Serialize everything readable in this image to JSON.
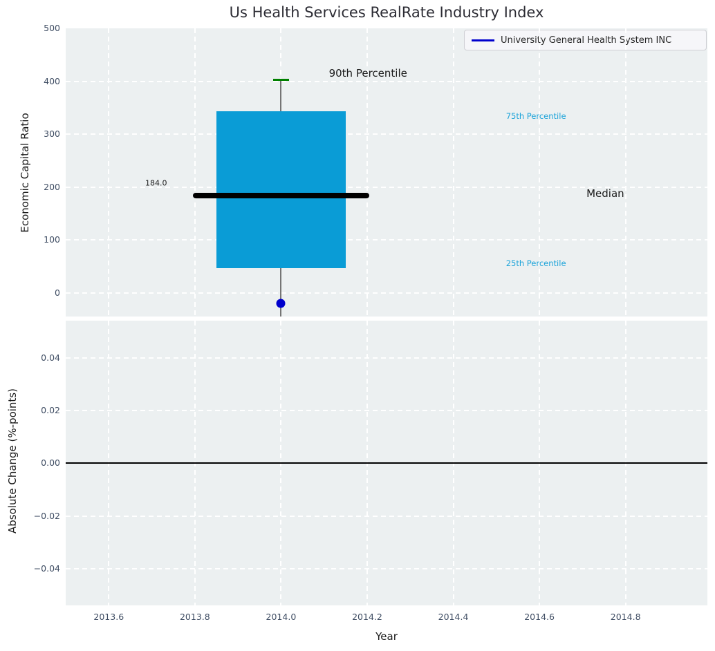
{
  "title": "Us Health Services RealRate Industry Index",
  "legend": {
    "label": "University General Health System INC",
    "line_color": "#0000cd",
    "position": "upper right"
  },
  "colors": {
    "figure_bg": "#ffffff",
    "axes_bg": "#ecf0f1",
    "grid": "#ffffff",
    "box_fill": "#0a9cd6",
    "whisker": "#757575",
    "p90_cap": "#008000",
    "median_line": "#000000",
    "company_dot": "#0000cd",
    "tick_label": "#3f4d63",
    "percentile_label": "#1ca3d9",
    "annotation_text": "#1a1a1a",
    "zero_line": "#000000"
  },
  "chart_data": [
    {
      "type": "boxplot",
      "ylabel": "Economic Capital Ratio",
      "ylim": [
        -45,
        500
      ],
      "xlim": [
        2013.5,
        2014.99
      ],
      "grid": "white dashed, on",
      "legend_position": "upper right",
      "yticks": [
        {
          "v": 500,
          "label": "500"
        },
        {
          "v": 400,
          "label": "400"
        },
        {
          "v": 300,
          "label": "300"
        },
        {
          "v": 200,
          "label": "200"
        },
        {
          "v": 100,
          "label": "100"
        },
        {
          "v": 0,
          "label": "0"
        }
      ],
      "box": {
        "x": 2014.0,
        "box_left": 2013.85,
        "box_right": 2014.15,
        "p25": 46,
        "median": 184,
        "p75": 343,
        "p90": 402,
        "whisker_bottom": -45,
        "median_line_left": 2013.795,
        "median_line_right": 2014.205,
        "cap_halfwidth": 0.018,
        "median_label": "184.0"
      },
      "company_point": {
        "name": "University General Health System INC",
        "x": 2014.0,
        "y": -20
      },
      "annotations": [
        {
          "text": "90th Percentile",
          "x": 2014.202,
          "y": 415,
          "color": "#1a1a1a",
          "size": 15
        },
        {
          "text": "75th Percentile",
          "x": 2014.592,
          "y": 334,
          "color": "#1ca3d9",
          "size": 11.5
        },
        {
          "text": "Median",
          "x": 2014.753,
          "y": 187,
          "color": "#1a1a1a",
          "size": 15
        },
        {
          "text": "25th Percentile",
          "x": 2014.592,
          "y": 56,
          "color": "#1ca3d9",
          "size": 11.5
        },
        {
          "text": "184.0",
          "x": 2013.71,
          "y": 207,
          "color": "#1a1a1a",
          "size": 11
        }
      ]
    },
    {
      "type": "line",
      "ylabel": "Absolute Change (%-points)",
      "xlabel": "Year",
      "ylim": [
        -0.054,
        0.0542
      ],
      "xlim": [
        2013.5,
        2014.99
      ],
      "grid": "white dashed, on",
      "zero_line": 0.0,
      "yticks": [
        {
          "v": 0.04,
          "label": "0.04"
        },
        {
          "v": 0.02,
          "label": "0.02"
        },
        {
          "v": 0.0,
          "label": "0.00"
        },
        {
          "v": -0.02,
          "label": "−0.02"
        },
        {
          "v": -0.04,
          "label": "−0.04"
        }
      ],
      "xticks": [
        {
          "v": 2013.6,
          "label": "2013.6"
        },
        {
          "v": 2013.8,
          "label": "2013.8"
        },
        {
          "v": 2014.0,
          "label": "2014.0"
        },
        {
          "v": 2014.2,
          "label": "2014.2"
        },
        {
          "v": 2014.4,
          "label": "2014.4"
        },
        {
          "v": 2014.6,
          "label": "2014.6"
        },
        {
          "v": 2014.8,
          "label": "2014.8"
        }
      ],
      "series": [
        {
          "name": "University General Health System INC",
          "x": [],
          "y": [],
          "note": "no visible data in this panel"
        }
      ]
    }
  ]
}
